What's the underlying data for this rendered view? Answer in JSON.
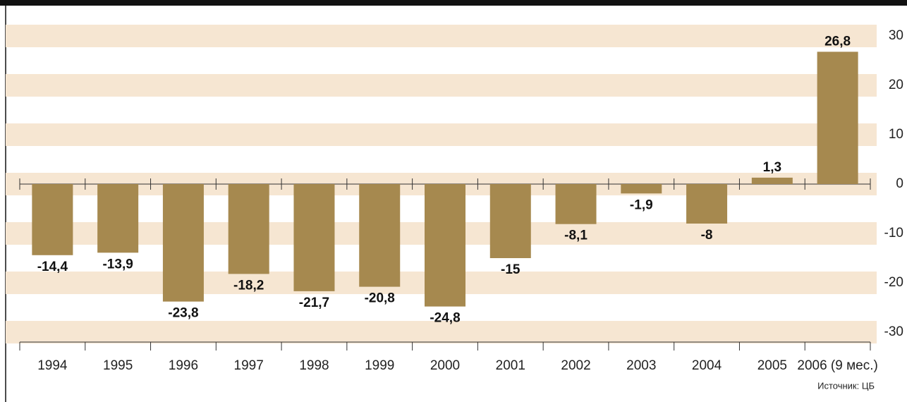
{
  "chart_data": {
    "type": "bar",
    "categories": [
      "1994",
      "1995",
      "1996",
      "1997",
      "1998",
      "1999",
      "2000",
      "2001",
      "2002",
      "2003",
      "2004",
      "2005",
      "2006 (9 мес.)"
    ],
    "values": [
      -14.4,
      -13.9,
      -23.8,
      -18.2,
      -21.7,
      -20.8,
      -24.8,
      -15,
      -8.1,
      -1.9,
      -8,
      1.3,
      26.8
    ],
    "value_labels": [
      "-14,4",
      "-13,9",
      "-23,8",
      "-18,2",
      "-21,7",
      "-20,8",
      "-24,8",
      "-15",
      "-8,1",
      "-1,9",
      "-8",
      "1,3",
      "26,8"
    ],
    "color": "#a6894f",
    "ylim": [
      -32,
      32
    ],
    "yticks": [
      30,
      20,
      10,
      0,
      -10,
      -20,
      -30
    ],
    "grid": true,
    "source": "Источник: ЦБ"
  }
}
